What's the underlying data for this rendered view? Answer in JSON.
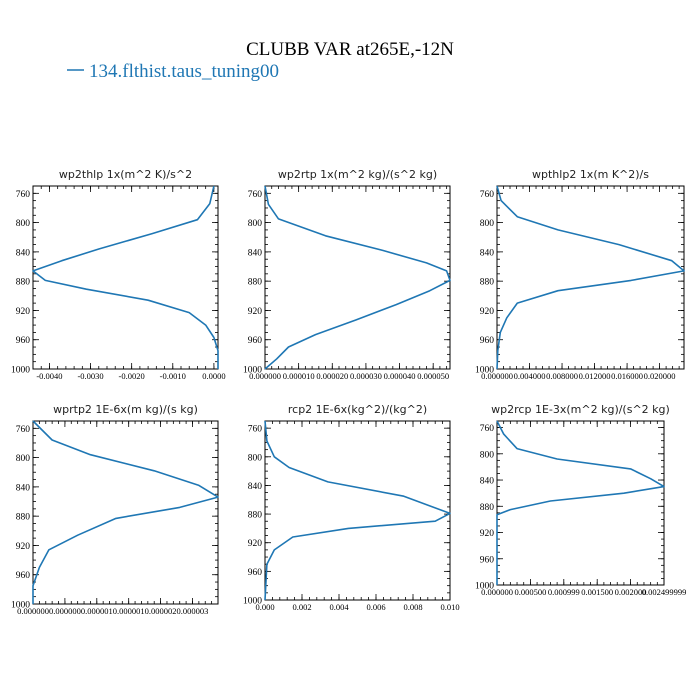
{
  "title": "CLUBB VAR at265E,-12N",
  "legend": {
    "label": "134.flthist.taus_tuning00",
    "color": "#1f77b4"
  },
  "chart_data": [
    {
      "type": "line",
      "title": "wp2thlp  1x(m^2 K)/s^2",
      "ylim": [
        1000,
        750
      ],
      "xlim": [
        -0.0044,
        0.0001
      ],
      "yticks": [
        "760",
        "800",
        "840",
        "880",
        "920",
        "960",
        "1000"
      ],
      "xticks": [
        "-0.0040",
        "-0.0030",
        "-0.0020",
        "-0.0010",
        "0.0000"
      ],
      "series": [
        {
          "color": "#1f77b4",
          "points": [
            [
              0.0,
              750
            ],
            [
              -0.0001,
              774
            ],
            [
              -0.0004,
              796
            ],
            [
              -0.0015,
              815
            ],
            [
              -0.0028,
              836
            ],
            [
              -0.0037,
              852
            ],
            [
              -0.0044,
              866
            ],
            [
              -0.0041,
              879
            ],
            [
              -0.0031,
              891
            ],
            [
              -0.0016,
              906
            ],
            [
              -0.0006,
              923
            ],
            [
              -0.0002,
              940
            ],
            [
              0.0,
              957
            ],
            [
              0.0001,
              975
            ],
            [
              0.0001,
              1000
            ]
          ]
        }
      ]
    },
    {
      "type": "line",
      "title": "wp2rtp  1x(m^2 kg)/(s^2 kg)",
      "ylim": [
        1000,
        750
      ],
      "xlim": [
        0.0,
        5.5e-05
      ],
      "yticks": [
        "760",
        "800",
        "840",
        "880",
        "920",
        "960",
        "1000"
      ],
      "xticks": [
        "0.000000",
        "0.000010",
        "0.000020",
        "0.000030",
        "0.000040",
        "0.000050"
      ],
      "series": [
        {
          "color": "#1f77b4",
          "points": [
            [
              0.0,
              750
            ],
            [
              1e-06,
              775
            ],
            [
              4e-06,
              795
            ],
            [
              1.8e-05,
              818
            ],
            [
              3.5e-05,
              838
            ],
            [
              4.8e-05,
              855
            ],
            [
              5.4e-05,
              866
            ],
            [
              5.5e-05,
              879
            ],
            [
              4.9e-05,
              893
            ],
            [
              3.9e-05,
              912
            ],
            [
              2.7e-05,
              933
            ],
            [
              1.5e-05,
              953
            ],
            [
              7e-06,
              970
            ],
            [
              3.5e-06,
              986
            ],
            [
              0.0,
              1000
            ]
          ]
        }
      ]
    },
    {
      "type": "line",
      "title": "wpthlp2  1x(m K^2)/s",
      "ylim": [
        1000,
        750
      ],
      "xlim": [
        0.0,
        0.023
      ],
      "yticks": [
        "760",
        "800",
        "840",
        "880",
        "920",
        "960",
        "1000"
      ],
      "xticks": [
        "0.000000",
        "0.004000",
        "0.008000",
        "0.012000",
        "0.016000",
        "0.020000"
      ],
      "series": [
        {
          "color": "#1f77b4",
          "points": [
            [
              0.0,
              750
            ],
            [
              0.0005,
              770
            ],
            [
              0.0025,
              792
            ],
            [
              0.0075,
              810
            ],
            [
              0.015,
              830
            ],
            [
              0.0215,
              852
            ],
            [
              0.023,
              866
            ],
            [
              0.0165,
              879
            ],
            [
              0.0075,
              893
            ],
            [
              0.0025,
              910
            ],
            [
              0.0012,
              930
            ],
            [
              0.0004,
              950
            ],
            [
              0.0001,
              975
            ],
            [
              0.0,
              1000
            ]
          ]
        }
      ]
    },
    {
      "type": "line",
      "title": "wprtp2  1E-6x(m kg)/(s kg)",
      "ylim": [
        1000,
        750
      ],
      "xlim": [
        0.0,
        2.9e-06
      ],
      "yticks": [
        "760",
        "800",
        "840",
        "880",
        "920",
        "960",
        "1000"
      ],
      "xticks": [
        "0.000000",
        "0.000000",
        "0.000001",
        "0.000001",
        "0.000002",
        "0.000003"
      ],
      "series": [
        {
          "color": "#1f77b4",
          "points": [
            [
              0.0,
              750
            ],
            [
              3e-07,
              776
            ],
            [
              9e-07,
              796
            ],
            [
              1.9e-06,
              818
            ],
            [
              2.6e-06,
              838
            ],
            [
              2.9e-06,
              854
            ],
            [
              2.3e-06,
              868
            ],
            [
              1.3e-06,
              883
            ],
            [
              7e-07,
              906
            ],
            [
              2.5e-07,
              926
            ],
            [
              1e-07,
              950
            ],
            [
              0.0,
              975
            ],
            [
              0.0,
              1000
            ]
          ]
        }
      ]
    },
    {
      "type": "line",
      "title": "rcp2  1E-6x(kg^2)/(kg^2)",
      "ylim": [
        1000,
        750
      ],
      "xlim": [
        0.0,
        0.01
      ],
      "yticks": [
        "760",
        "800",
        "840",
        "880",
        "920",
        "960",
        "1000"
      ],
      "xticks": [
        "0.000",
        "0.002",
        "0.004",
        "0.006",
        "0.008",
        "0.010"
      ],
      "series": [
        {
          "color": "#1f77b4",
          "points": [
            [
              0.0,
              750
            ],
            [
              0.0001,
              778
            ],
            [
              0.0005,
              800
            ],
            [
              0.0013,
              815
            ],
            [
              0.0034,
              835
            ],
            [
              0.0075,
              855
            ],
            [
              0.01,
              879
            ],
            [
              0.0092,
              890
            ],
            [
              0.0045,
              900
            ],
            [
              0.0015,
              912
            ],
            [
              0.0005,
              930
            ],
            [
              0.0001,
              950
            ],
            [
              0.0,
              1000
            ]
          ]
        }
      ]
    },
    {
      "type": "line",
      "title": "wp2rcp  1E-3x(m^2 kg)/(s^2 kg)",
      "ylim": [
        1000,
        750
      ],
      "xlim": [
        0.0,
        0.0025
      ],
      "yticks": [
        "760",
        "800",
        "840",
        "880",
        "920",
        "960",
        "1000"
      ],
      "xticks": [
        "0.000000",
        "0.000500",
        "0.000999",
        "0.001500",
        "0.002000",
        "0.002499999"
      ],
      "series": [
        {
          "color": "#1f77b4",
          "points": [
            [
              0.0,
              750
            ],
            [
              0.0001,
              770
            ],
            [
              0.0003,
              792
            ],
            [
              0.0009,
              808
            ],
            [
              0.002,
              823
            ],
            [
              0.0023,
              838
            ],
            [
              0.0025,
              850
            ],
            [
              0.0019,
              860
            ],
            [
              0.0008,
              872
            ],
            [
              0.0002,
              885
            ],
            [
              0.0,
              893
            ],
            [
              0.0,
              1000
            ]
          ]
        }
      ]
    }
  ]
}
